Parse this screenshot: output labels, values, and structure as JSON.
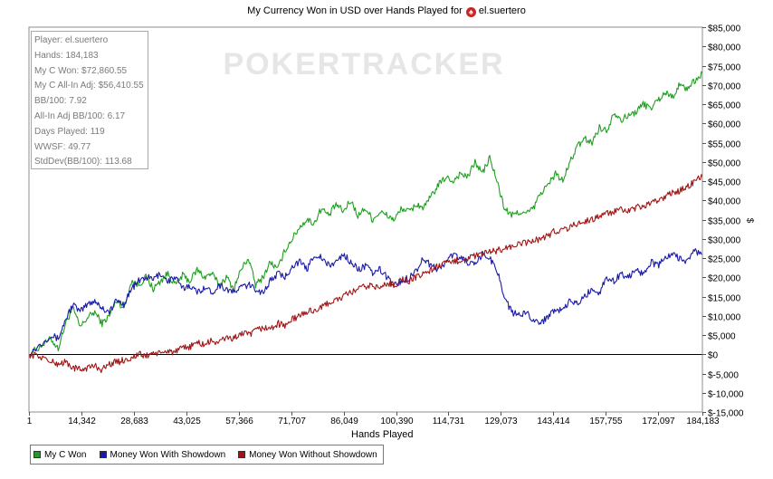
{
  "title": {
    "text": "My Currency Won in USD over Hands Played for",
    "player": "el.suertero",
    "icon": "spade-icon"
  },
  "watermark": "POKERTRACKER",
  "stats_box": [
    "Player: el.suertero",
    "Hands: 184,183",
    "My C Won: $72,860.55",
    "My C All-In Adj: $56,410.55",
    "BB/100: 7.92",
    "All-In Adj BB/100: 6.17",
    "Days Played: 119",
    "WWSF: 49.77",
    "StdDev(BB/100): 113.68"
  ],
  "legend": [
    {
      "label": "My C Won",
      "color": "#1ea01e"
    },
    {
      "label": "Money Won With Showdown",
      "color": "#1a1aa8"
    },
    {
      "label": "Money Won Without Showdown",
      "color": "#a01414"
    }
  ],
  "chart_data": {
    "type": "line",
    "xlabel": "Hands Played",
    "ylabel": "$",
    "xlim": [
      1,
      184183
    ],
    "ylim": [
      -15000,
      85000
    ],
    "x_ticks": [
      1,
      14342,
      28683,
      43025,
      57366,
      71707,
      86049,
      100390,
      114731,
      129073,
      143414,
      157755,
      172097,
      184183
    ],
    "x_tick_labels": [
      "1",
      "14,342",
      "28,683",
      "43,025",
      "57,366",
      "71,707",
      "86,049",
      "100,390",
      "114,731",
      "129,073",
      "143,414",
      "157,755",
      "172,097",
      "184,183"
    ],
    "y_ticks": [
      -15000,
      -10000,
      -5000,
      0,
      5000,
      10000,
      15000,
      20000,
      25000,
      30000,
      35000,
      40000,
      45000,
      50000,
      55000,
      60000,
      65000,
      70000,
      75000,
      80000,
      85000
    ],
    "y_tick_labels": [
      "$-15,000",
      "$-10,000",
      "$-5,000",
      "$0",
      "$5,000",
      "$10,000",
      "$15,000",
      "$20,000",
      "$25,000",
      "$30,000",
      "$35,000",
      "$40,000",
      "$45,000",
      "$50,000",
      "$55,000",
      "$60,000",
      "$65,000",
      "$70,000",
      "$75,000",
      "$80,000",
      "$85,000"
    ],
    "zero_line": true,
    "series": [
      {
        "name": "My C Won",
        "color": "#1ea01e",
        "x": [
          1,
          3000,
          6000,
          8000,
          10000,
          12000,
          14000,
          16000,
          18000,
          20000,
          22000,
          24000,
          26000,
          28000,
          30000,
          32000,
          34000,
          36000,
          38000,
          40000,
          42000,
          44000,
          46000,
          48000,
          50000,
          52000,
          54000,
          56000,
          58000,
          60000,
          62000,
          64000,
          66000,
          68000,
          70000,
          72000,
          74000,
          76000,
          78000,
          80000,
          82000,
          84000,
          86000,
          88000,
          90000,
          92000,
          94000,
          96000,
          98000,
          100000,
          102000,
          104000,
          106000,
          108000,
          110000,
          112000,
          114000,
          116000,
          118000,
          120000,
          122000,
          124000,
          126000,
          128000,
          130000,
          132000,
          134000,
          136000,
          138000,
          140000,
          142000,
          144000,
          146000,
          148000,
          150000,
          152000,
          154000,
          156000,
          158000,
          160000,
          162000,
          164000,
          166000,
          168000,
          170000,
          172000,
          174000,
          176000,
          178000,
          180000,
          182000,
          184183
        ],
        "y": [
          0,
          2000,
          4000,
          1500,
          8000,
          12000,
          7000,
          9500,
          11000,
          8000,
          10000,
          14000,
          12000,
          19000,
          18000,
          20000,
          17000,
          19000,
          21000,
          18000,
          20500,
          19000,
          22000,
          20000,
          21000,
          18000,
          20000,
          17000,
          22000,
          25000,
          18000,
          20000,
          24000,
          22000,
          27000,
          30000,
          33000,
          35000,
          34000,
          38000,
          36000,
          39000,
          37000,
          40000,
          36000,
          38000,
          35000,
          37000,
          36000,
          35000,
          38000,
          37000,
          39000,
          38000,
          41000,
          44000,
          46000,
          45000,
          47000,
          46000,
          50000,
          47000,
          51000,
          45000,
          38000,
          36000,
          37000,
          36500,
          38000,
          42000,
          44000,
          47000,
          45000,
          50000,
          54000,
          56000,
          55000,
          59000,
          58000,
          63000,
          61000,
          62000,
          63000,
          65000,
          64000,
          66000,
          68000,
          67000,
          70000,
          69000,
          71000,
          73000
        ]
      },
      {
        "name": "Money Won With Showdown",
        "color": "#1a1aa8",
        "x": [
          1,
          3000,
          6000,
          8000,
          10000,
          12000,
          14000,
          16000,
          18000,
          20000,
          22000,
          24000,
          26000,
          28000,
          30000,
          32000,
          34000,
          36000,
          38000,
          40000,
          42000,
          44000,
          46000,
          48000,
          50000,
          52000,
          54000,
          56000,
          58000,
          60000,
          62000,
          64000,
          66000,
          68000,
          70000,
          72000,
          74000,
          76000,
          78000,
          80000,
          82000,
          84000,
          86000,
          88000,
          90000,
          92000,
          94000,
          96000,
          98000,
          100000,
          102000,
          104000,
          106000,
          108000,
          110000,
          112000,
          114000,
          116000,
          118000,
          120000,
          122000,
          124000,
          126000,
          128000,
          130000,
          132000,
          134000,
          136000,
          138000,
          140000,
          142000,
          144000,
          146000,
          148000,
          150000,
          152000,
          154000,
          156000,
          158000,
          160000,
          162000,
          164000,
          166000,
          168000,
          170000,
          172000,
          174000,
          176000,
          178000,
          180000,
          182000,
          184183
        ],
        "y": [
          0,
          2500,
          5000,
          4000,
          9000,
          13000,
          11000,
          13000,
          14000,
          12000,
          11000,
          14000,
          13000,
          17000,
          19000,
          20000,
          19500,
          21000,
          19000,
          20000,
          17000,
          18000,
          16000,
          17500,
          16000,
          18000,
          17000,
          16000,
          17500,
          18000,
          17000,
          16000,
          19000,
          21000,
          20000,
          23000,
          24000,
          22000,
          26000,
          25000,
          23000,
          24000,
          26000,
          24000,
          22000,
          23000,
          21000,
          22000,
          20000,
          18000,
          19000,
          20000,
          22000,
          25000,
          23000,
          22000,
          24000,
          26000,
          25000,
          24000,
          23000,
          26000,
          25000,
          22000,
          15000,
          11000,
          10000,
          11000,
          9000,
          8000,
          10000,
          12000,
          11000,
          14000,
          13000,
          15000,
          17000,
          16000,
          20000,
          19000,
          21000,
          20000,
          22000,
          21000,
          24000,
          23000,
          25000,
          26000,
          25000,
          24000,
          27000,
          26000
        ]
      },
      {
        "name": "Money Won Without Showdown",
        "color": "#a01414",
        "x": [
          1,
          3000,
          6000,
          8000,
          10000,
          12000,
          14000,
          16000,
          18000,
          20000,
          22000,
          24000,
          26000,
          28000,
          30000,
          32000,
          34000,
          36000,
          38000,
          40000,
          42000,
          44000,
          46000,
          48000,
          50000,
          52000,
          54000,
          56000,
          58000,
          60000,
          62000,
          64000,
          66000,
          68000,
          70000,
          72000,
          74000,
          76000,
          78000,
          80000,
          82000,
          84000,
          86000,
          88000,
          90000,
          92000,
          94000,
          96000,
          98000,
          100000,
          102000,
          104000,
          106000,
          108000,
          110000,
          112000,
          114000,
          116000,
          118000,
          120000,
          122000,
          124000,
          126000,
          128000,
          130000,
          132000,
          134000,
          136000,
          138000,
          140000,
          142000,
          144000,
          146000,
          148000,
          150000,
          152000,
          154000,
          156000,
          158000,
          160000,
          162000,
          164000,
          166000,
          168000,
          170000,
          172000,
          174000,
          176000,
          178000,
          180000,
          182000,
          184183
        ],
        "y": [
          0,
          -500,
          -2000,
          -2500,
          -2000,
          -3500,
          -4000,
          -3500,
          -3000,
          -4000,
          -2500,
          -2000,
          -1500,
          -1000,
          0,
          -500,
          500,
          0,
          1000,
          500,
          1500,
          2000,
          3000,
          2500,
          3500,
          3000,
          4500,
          4000,
          5500,
          5000,
          6000,
          7000,
          6500,
          8000,
          7500,
          9000,
          10000,
          11000,
          11500,
          12000,
          13500,
          14000,
          15000,
          16000,
          17000,
          17500,
          18000,
          17000,
          18500,
          18000,
          19500,
          19000,
          20000,
          21000,
          22000,
          23000,
          23500,
          24000,
          24500,
          25000,
          25500,
          26000,
          26500,
          27000,
          27500,
          28000,
          28500,
          29000,
          29500,
          30000,
          31000,
          32000,
          32500,
          33000,
          34000,
          34500,
          35000,
          36000,
          36500,
          37000,
          37500,
          37000,
          38000,
          38500,
          39000,
          40000,
          41000,
          42000,
          42500,
          43500,
          45000,
          46000
        ]
      }
    ]
  }
}
